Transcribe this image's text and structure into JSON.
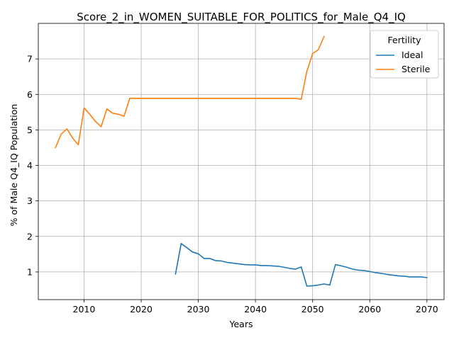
{
  "chart_data": {
    "type": "line",
    "title": "Score_2_in_WOMEN_SUITABLE_FOR_POLITICS_for_Male_Q4_IQ",
    "xlabel": "Years",
    "ylabel": "% of Male Q4_IQ Population",
    "xlim": [
      2002,
      2073
    ],
    "ylim": [
      0.22,
      8.0
    ],
    "xticks": [
      2010,
      2020,
      2030,
      2040,
      2050,
      2060,
      2070
    ],
    "yticks": [
      1,
      2,
      3,
      4,
      5,
      6,
      7
    ],
    "grid": true,
    "legend": {
      "title": "Fertility",
      "placement": "top-right"
    },
    "series": [
      {
        "name": "Ideal",
        "color": "#1f77b4",
        "x": [
          2026,
          2027,
          2028,
          2029,
          2030,
          2031,
          2032,
          2033,
          2034,
          2035,
          2036,
          2037,
          2038,
          2039,
          2040,
          2041,
          2042,
          2043,
          2044,
          2045,
          2046,
          2047,
          2048,
          2049,
          2050,
          2051,
          2052,
          2053,
          2054,
          2055,
          2056,
          2057,
          2058,
          2059,
          2060,
          2061,
          2062,
          2063,
          2064,
          2065,
          2066,
          2067,
          2068,
          2069,
          2070
        ],
        "y": [
          0.94,
          1.8,
          1.68,
          1.56,
          1.51,
          1.38,
          1.38,
          1.32,
          1.31,
          1.27,
          1.25,
          1.23,
          1.21,
          1.2,
          1.2,
          1.18,
          1.18,
          1.17,
          1.16,
          1.13,
          1.1,
          1.08,
          1.14,
          0.6,
          0.61,
          0.63,
          0.66,
          0.63,
          1.21,
          1.17,
          1.13,
          1.08,
          1.05,
          1.04,
          1.01,
          0.98,
          0.96,
          0.93,
          0.91,
          0.89,
          0.88,
          0.86,
          0.86,
          0.86,
          0.84
        ]
      },
      {
        "name": "Sterile",
        "color": "#ff7f0e",
        "x": [
          2005,
          2006,
          2007,
          2008,
          2009,
          2010,
          2011,
          2012,
          2013,
          2014,
          2015,
          2016,
          2017,
          2018,
          2019,
          2020,
          2021,
          2022,
          2023,
          2024,
          2025,
          2026,
          2027,
          2028,
          2029,
          2030,
          2031,
          2032,
          2033,
          2034,
          2035,
          2036,
          2037,
          2038,
          2039,
          2040,
          2041,
          2042,
          2043,
          2044,
          2045,
          2046,
          2047,
          2048,
          2049,
          2050,
          2051,
          2052
        ],
        "y": [
          4.5,
          4.88,
          5.03,
          4.77,
          4.58,
          5.62,
          5.44,
          5.24,
          5.09,
          5.59,
          5.47,
          5.44,
          5.38,
          5.89,
          5.89,
          5.89,
          5.89,
          5.89,
          5.89,
          5.89,
          5.89,
          5.89,
          5.89,
          5.89,
          5.89,
          5.89,
          5.89,
          5.89,
          5.89,
          5.89,
          5.89,
          5.89,
          5.89,
          5.89,
          5.89,
          5.89,
          5.89,
          5.89,
          5.89,
          5.89,
          5.89,
          5.89,
          5.89,
          5.86,
          6.65,
          7.15,
          7.26,
          7.63
        ]
      }
    ]
  }
}
